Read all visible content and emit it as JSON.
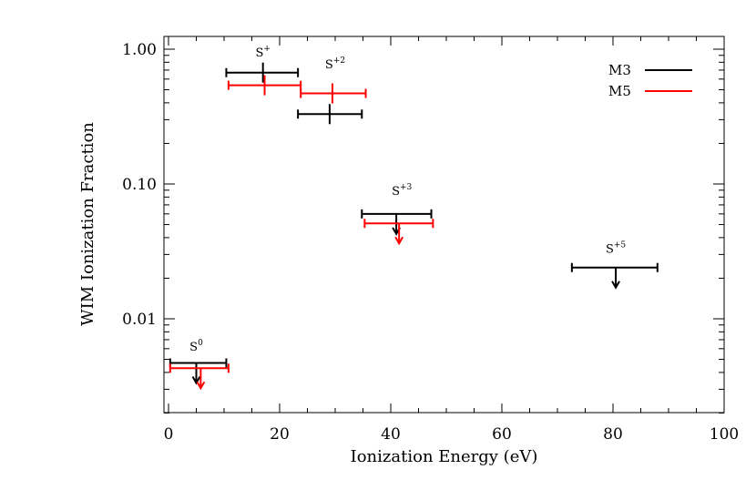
{
  "chart_data": {
    "type": "scatter",
    "title": "",
    "xlabel": "Ionization Energy (eV)",
    "ylabel": "WIM Ionization Fraction",
    "xlim": [
      0,
      100
    ],
    "ylim": [
      0.002,
      1.3
    ],
    "y_scale": "log",
    "x_ticks": [
      {
        "value": 0,
        "label": "0"
      },
      {
        "value": 20,
        "label": "20"
      },
      {
        "value": 40,
        "label": "40"
      },
      {
        "value": 60,
        "label": "60"
      },
      {
        "value": 80,
        "label": "80"
      },
      {
        "value": 100,
        "label": "100"
      }
    ],
    "y_ticks": [
      {
        "value": 0.01,
        "label": "0.01"
      },
      {
        "value": 0.1,
        "label": "0.10"
      },
      {
        "value": 1.0,
        "label": "1.00"
      }
    ],
    "legend": {
      "position": "top-right",
      "entries": [
        {
          "name": "M3",
          "color": "#000000"
        },
        {
          "name": "M5",
          "color": "#ff0000"
        }
      ]
    },
    "annotations": [
      {
        "base": "S",
        "sup": "0",
        "x": 5.0,
        "y": 0.0058
      },
      {
        "base": "S",
        "sup": "+",
        "x": 17.0,
        "y": 0.88
      },
      {
        "base": "S",
        "sup": "+2",
        "x": 30.0,
        "y": 0.72
      },
      {
        "base": "S",
        "sup": "+3",
        "x": 42.0,
        "y": 0.083
      },
      {
        "base": "S",
        "sup": "+5",
        "x": 80.5,
        "y": 0.031
      }
    ],
    "series": [
      {
        "name": "M3",
        "color": "#000000",
        "points": [
          {
            "ion": "S0",
            "x": 5.0,
            "xmin": 0.3,
            "xmax": 10.4,
            "y": 0.0047,
            "upper_limit": true
          },
          {
            "ion": "S+",
            "x": 17.0,
            "xmin": 10.4,
            "xmax": 23.3,
            "y": 0.67,
            "upper_limit": false
          },
          {
            "ion": "S+2",
            "x": 29.0,
            "xmin": 23.3,
            "xmax": 34.8,
            "y": 0.33,
            "upper_limit": false
          },
          {
            "ion": "S+3",
            "x": 41.0,
            "xmin": 34.8,
            "xmax": 47.3,
            "y": 0.06,
            "upper_limit": true
          },
          {
            "ion": "S+5",
            "x": 80.5,
            "xmin": 72.6,
            "xmax": 88.0,
            "y": 0.024,
            "upper_limit": true
          }
        ]
      },
      {
        "name": "M5",
        "color": "#ff0000",
        "points": [
          {
            "ion": "S0",
            "x": 5.8,
            "xmin": 0.3,
            "xmax": 10.8,
            "y": 0.0043,
            "upper_limit": true
          },
          {
            "ion": "S+",
            "x": 17.3,
            "xmin": 10.8,
            "xmax": 23.8,
            "y": 0.54,
            "upper_limit": false
          },
          {
            "ion": "S+2",
            "x": 29.5,
            "xmin": 23.8,
            "xmax": 35.5,
            "y": 0.47,
            "upper_limit": false
          },
          {
            "ion": "S+3",
            "x": 41.5,
            "xmin": 35.3,
            "xmax": 47.6,
            "y": 0.051,
            "upper_limit": true
          }
        ]
      }
    ]
  }
}
